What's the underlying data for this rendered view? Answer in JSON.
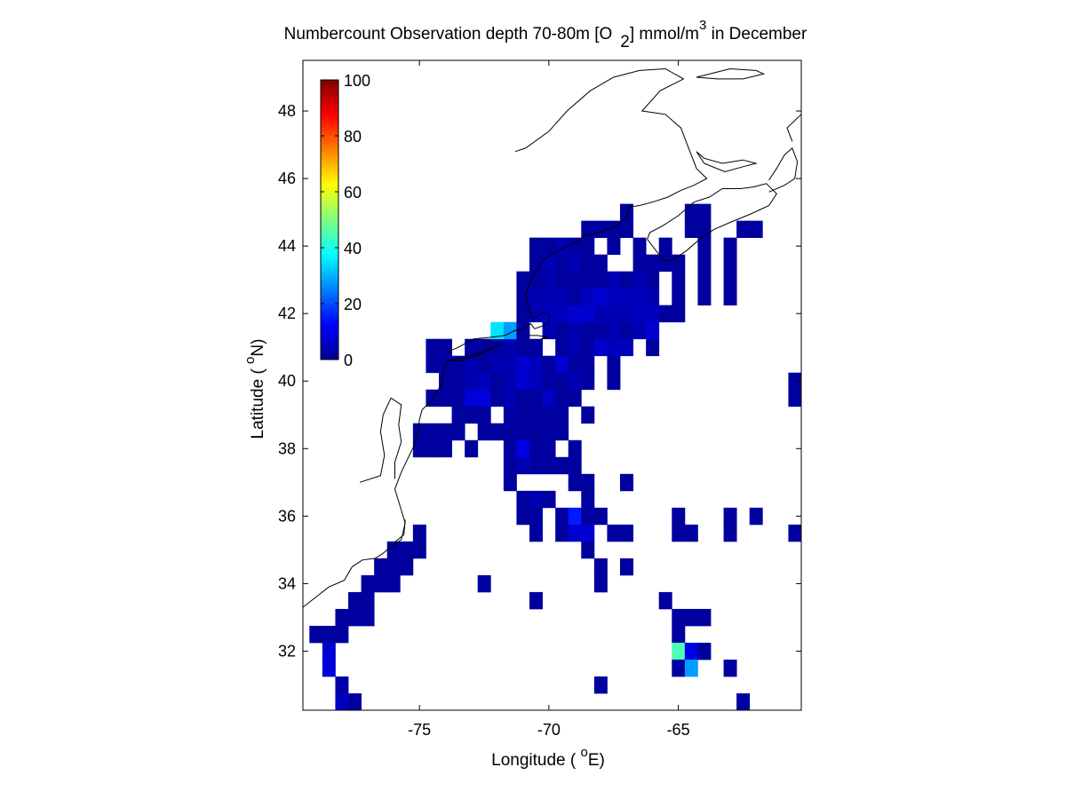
{
  "chart_data": {
    "type": "heatmap",
    "title": {
      "main": "Numbercount Observation depth 70-80m [O",
      "sub": "2",
      "unit": "] mmol/m",
      "unit_sup": "3",
      "tail": " in December"
    },
    "xlabel": {
      "pre": "Longitude ( ",
      "sup": "o",
      "post": "E)"
    },
    "ylabel": {
      "pre": "Latitude ( ",
      "sup": "o",
      "post": "N)"
    },
    "xlim": [
      -79.5,
      -60.25
    ],
    "ylim": [
      30.25,
      49.5
    ],
    "xticks": [
      -75,
      -70,
      -65
    ],
    "xtick_labels": [
      "-75",
      "-70",
      "-65"
    ],
    "yticks": [
      32,
      34,
      36,
      38,
      40,
      42,
      44,
      46,
      48
    ],
    "ytick_labels": [
      "32",
      "34",
      "36",
      "38",
      "40",
      "42",
      "44",
      "46",
      "48"
    ],
    "grid": false,
    "cell_size_deg": 0.5,
    "colormap": "jet",
    "colorbar": {
      "location": "inside-top-left",
      "range": [
        0,
        100
      ],
      "ticks": [
        0,
        20,
        40,
        60,
        80,
        100
      ],
      "tick_labels": [
        "0",
        "20",
        "40",
        "60",
        "80",
        "100"
      ]
    },
    "coastline_color": "#000000",
    "cells": [
      [
        -79.0,
        32.5,
        3
      ],
      [
        -78.5,
        32.5,
        3
      ],
      [
        -78.0,
        32.5,
        3
      ],
      [
        -78.5,
        32.0,
        8
      ],
      [
        -78.5,
        31.5,
        9
      ],
      [
        -78.0,
        31.0,
        4
      ],
      [
        -78.0,
        30.5,
        6
      ],
      [
        -77.5,
        30.5,
        3
      ],
      [
        -78.0,
        33.0,
        3
      ],
      [
        -77.5,
        33.0,
        3
      ],
      [
        -77.0,
        33.0,
        3
      ],
      [
        -77.5,
        33.5,
        3
      ],
      [
        -77.0,
        33.5,
        3
      ],
      [
        -77.0,
        34.0,
        3
      ],
      [
        -76.5,
        34.0,
        3
      ],
      [
        -76.0,
        34.0,
        3
      ],
      [
        -76.5,
        34.5,
        3
      ],
      [
        -76.0,
        34.5,
        3
      ],
      [
        -75.5,
        34.5,
        3
      ],
      [
        -76.0,
        35.0,
        3
      ],
      [
        -75.5,
        35.0,
        3
      ],
      [
        -75.0,
        35.0,
        3
      ],
      [
        -75.0,
        35.5,
        3
      ],
      [
        -75.0,
        38.5,
        3
      ],
      [
        -74.5,
        38.5,
        3
      ],
      [
        -75.0,
        38.0,
        3
      ],
      [
        -74.5,
        38.0,
        3
      ],
      [
        -74.0,
        38.0,
        3
      ],
      [
        -74.0,
        38.5,
        3
      ],
      [
        -73.5,
        38.5,
        3
      ],
      [
        -73.0,
        38.0,
        3
      ],
      [
        -72.5,
        38.5,
        3
      ],
      [
        -72.0,
        38.5,
        3
      ],
      [
        -71.5,
        38.5,
        3
      ],
      [
        -71.0,
        38.5,
        3
      ],
      [
        -70.5,
        38.5,
        3
      ],
      [
        -70.0,
        38.5,
        3
      ],
      [
        -69.5,
        38.5,
        3
      ],
      [
        -73.5,
        39.0,
        3
      ],
      [
        -73.0,
        39.0,
        3
      ],
      [
        -72.5,
        39.0,
        3
      ],
      [
        -71.5,
        39.0,
        3
      ],
      [
        -71.0,
        39.0,
        3
      ],
      [
        -70.5,
        39.0,
        3
      ],
      [
        -70.0,
        39.0,
        3
      ],
      [
        -69.5,
        39.0,
        3
      ],
      [
        -68.5,
        39.0,
        3
      ],
      [
        -74.5,
        39.5,
        3
      ],
      [
        -74.0,
        39.5,
        3
      ],
      [
        -73.5,
        39.5,
        3
      ],
      [
        -73.0,
        39.5,
        9
      ],
      [
        -72.5,
        39.5,
        9
      ],
      [
        -72.0,
        39.5,
        3
      ],
      [
        -71.5,
        39.5,
        5
      ],
      [
        -71.0,
        39.5,
        3
      ],
      [
        -70.5,
        39.5,
        3
      ],
      [
        -70.0,
        39.5,
        7
      ],
      [
        -69.5,
        39.5,
        3
      ],
      [
        -69.0,
        39.5,
        3
      ],
      [
        -74.0,
        40.0,
        3
      ],
      [
        -73.5,
        40.0,
        3
      ],
      [
        -73.0,
        40.0,
        5
      ],
      [
        -72.5,
        40.0,
        6
      ],
      [
        -72.0,
        40.0,
        3
      ],
      [
        -71.5,
        40.0,
        5
      ],
      [
        -71.0,
        40.0,
        8
      ],
      [
        -70.5,
        40.0,
        6
      ],
      [
        -70.0,
        40.0,
        3
      ],
      [
        -69.5,
        40.0,
        3
      ],
      [
        -69.0,
        40.0,
        5
      ],
      [
        -68.5,
        40.0,
        3
      ],
      [
        -67.5,
        40.0,
        3
      ],
      [
        -74.5,
        40.5,
        3
      ],
      [
        -74.0,
        40.5,
        3
      ],
      [
        -73.5,
        40.5,
        3
      ],
      [
        -73.0,
        40.5,
        5
      ],
      [
        -72.5,
        40.5,
        3
      ],
      [
        -72.0,
        40.5,
        5
      ],
      [
        -71.5,
        40.5,
        5
      ],
      [
        -71.0,
        40.5,
        8
      ],
      [
        -70.5,
        40.5,
        6
      ],
      [
        -70.0,
        40.5,
        3
      ],
      [
        -69.5,
        40.5,
        8
      ],
      [
        -69.0,
        40.5,
        3
      ],
      [
        -68.5,
        40.5,
        3
      ],
      [
        -67.5,
        40.5,
        3
      ],
      [
        -74.5,
        41.0,
        3
      ],
      [
        -74.0,
        41.0,
        3
      ],
      [
        -73.0,
        41.0,
        3
      ],
      [
        -72.5,
        41.0,
        3
      ],
      [
        -72.0,
        41.0,
        3
      ],
      [
        -71.5,
        41.0,
        5
      ],
      [
        -71.0,
        41.0,
        3
      ],
      [
        -70.5,
        41.0,
        3
      ],
      [
        -69.5,
        41.0,
        3
      ],
      [
        -69.0,
        41.0,
        5
      ],
      [
        -68.5,
        41.0,
        3
      ],
      [
        -68.0,
        41.0,
        8
      ],
      [
        -67.5,
        41.0,
        6
      ],
      [
        -67.0,
        41.0,
        6
      ],
      [
        -66.0,
        41.0,
        3
      ],
      [
        -72.0,
        41.5,
        35
      ],
      [
        -71.5,
        41.5,
        28
      ],
      [
        -71.0,
        41.5,
        3
      ],
      [
        -70.0,
        41.5,
        5
      ],
      [
        -69.5,
        41.5,
        3
      ],
      [
        -69.0,
        41.5,
        5
      ],
      [
        -68.5,
        41.5,
        3
      ],
      [
        -68.0,
        41.5,
        3
      ],
      [
        -67.5,
        41.5,
        5
      ],
      [
        -67.0,
        41.5,
        3
      ],
      [
        -66.5,
        41.5,
        5
      ],
      [
        -66.0,
        41.5,
        8
      ],
      [
        -71.0,
        42.0,
        3
      ],
      [
        -70.5,
        42.0,
        5
      ],
      [
        -70.0,
        42.0,
        6
      ],
      [
        -69.5,
        42.0,
        6
      ],
      [
        -69.0,
        42.0,
        8
      ],
      [
        -68.5,
        42.0,
        8
      ],
      [
        -68.0,
        42.0,
        5
      ],
      [
        -67.5,
        42.0,
        5
      ],
      [
        -67.0,
        42.0,
        5
      ],
      [
        -66.5,
        42.0,
        6
      ],
      [
        -66.0,
        42.0,
        6
      ],
      [
        -65.5,
        42.0,
        3
      ],
      [
        -65.0,
        42.0,
        3
      ],
      [
        -71.0,
        42.5,
        3
      ],
      [
        -70.5,
        42.5,
        5
      ],
      [
        -70.0,
        42.5,
        5
      ],
      [
        -69.5,
        42.5,
        5
      ],
      [
        -69.0,
        42.5,
        3
      ],
      [
        -68.5,
        42.5,
        6
      ],
      [
        -68.0,
        42.5,
        8
      ],
      [
        -67.5,
        42.5,
        6
      ],
      [
        -67.0,
        42.5,
        6
      ],
      [
        -66.5,
        42.5,
        6
      ],
      [
        -66.0,
        42.5,
        5
      ],
      [
        -65.0,
        42.5,
        3
      ],
      [
        -64.0,
        42.5,
        3
      ],
      [
        -63.0,
        42.5,
        3
      ],
      [
        -71.0,
        43.0,
        3
      ],
      [
        -70.5,
        43.0,
        3
      ],
      [
        -70.0,
        43.0,
        5
      ],
      [
        -69.5,
        43.0,
        3
      ],
      [
        -69.0,
        43.0,
        3
      ],
      [
        -68.5,
        43.0,
        3
      ],
      [
        -68.0,
        43.0,
        3
      ],
      [
        -67.5,
        43.0,
        5
      ],
      [
        -67.0,
        43.0,
        3
      ],
      [
        -66.5,
        43.0,
        5
      ],
      [
        -66.0,
        43.0,
        3
      ],
      [
        -65.0,
        43.0,
        3
      ],
      [
        -64.0,
        43.0,
        3
      ],
      [
        -63.0,
        43.0,
        3
      ],
      [
        -70.5,
        43.5,
        3
      ],
      [
        -70.0,
        43.5,
        5
      ],
      [
        -69.5,
        43.5,
        3
      ],
      [
        -69.0,
        43.5,
        5
      ],
      [
        -68.5,
        43.5,
        3
      ],
      [
        -68.0,
        43.5,
        3
      ],
      [
        -66.5,
        43.5,
        3
      ],
      [
        -66.0,
        43.5,
        3
      ],
      [
        -65.5,
        43.5,
        3
      ],
      [
        -65.0,
        43.5,
        3
      ],
      [
        -64.0,
        43.5,
        3
      ],
      [
        -63.0,
        43.5,
        3
      ],
      [
        -70.5,
        44.0,
        3
      ],
      [
        -70.0,
        44.0,
        3
      ],
      [
        -69.5,
        44.0,
        5
      ],
      [
        -69.0,
        44.0,
        3
      ],
      [
        -68.5,
        44.0,
        3
      ],
      [
        -67.5,
        44.0,
        3
      ],
      [
        -66.5,
        44.0,
        3
      ],
      [
        -65.5,
        44.0,
        3
      ],
      [
        -64.0,
        44.0,
        3
      ],
      [
        -63.0,
        44.0,
        3
      ],
      [
        -68.5,
        44.5,
        3
      ],
      [
        -68.0,
        44.5,
        3
      ],
      [
        -67.5,
        44.5,
        3
      ],
      [
        -67.0,
        44.5,
        3
      ],
      [
        -64.5,
        44.5,
        3
      ],
      [
        -64.0,
        44.5,
        3
      ],
      [
        -62.5,
        44.5,
        3
      ],
      [
        -62.0,
        44.5,
        3
      ],
      [
        -67.0,
        45.0,
        3
      ],
      [
        -64.5,
        45.0,
        3
      ],
      [
        -64.0,
        45.0,
        3
      ],
      [
        -70.5,
        37.5,
        3
      ],
      [
        -70.0,
        37.5,
        3
      ],
      [
        -69.5,
        37.5,
        3
      ],
      [
        -69.0,
        37.5,
        3
      ],
      [
        -71.0,
        37.5,
        5
      ],
      [
        -71.5,
        37.5,
        3
      ],
      [
        -71.5,
        38.0,
        3
      ],
      [
        -71.0,
        38.0,
        10
      ],
      [
        -70.5,
        38.0,
        3
      ],
      [
        -70.0,
        38.0,
        3
      ],
      [
        -69.0,
        38.0,
        3
      ],
      [
        -71.5,
        37.0,
        3
      ],
      [
        -69.0,
        37.0,
        3
      ],
      [
        -68.5,
        37.0,
        3
      ],
      [
        -67.0,
        37.0,
        3
      ],
      [
        -71.0,
        36.5,
        3
      ],
      [
        -70.5,
        36.5,
        5
      ],
      [
        -70.0,
        36.5,
        3
      ],
      [
        -68.5,
        36.5,
        3
      ],
      [
        -71.0,
        36.0,
        3
      ],
      [
        -70.5,
        36.0,
        3
      ],
      [
        -69.5,
        36.0,
        3
      ],
      [
        -69.0,
        36.0,
        15
      ],
      [
        -68.5,
        36.0,
        3
      ],
      [
        -68.0,
        36.0,
        3
      ],
      [
        -65.0,
        36.0,
        3
      ],
      [
        -63.0,
        36.0,
        3
      ],
      [
        -62.0,
        36.0,
        3
      ],
      [
        -70.5,
        35.5,
        3
      ],
      [
        -69.5,
        35.5,
        3
      ],
      [
        -69.0,
        35.5,
        8
      ],
      [
        -68.5,
        35.5,
        8
      ],
      [
        -67.5,
        35.5,
        3
      ],
      [
        -67.0,
        35.5,
        3
      ],
      [
        -65.0,
        35.5,
        3
      ],
      [
        -64.5,
        35.5,
        3
      ],
      [
        -63.0,
        35.5,
        3
      ],
      [
        -60.5,
        35.5,
        3
      ],
      [
        -68.5,
        35.0,
        3
      ],
      [
        -68.0,
        34.5,
        3
      ],
      [
        -67.0,
        34.5,
        3
      ],
      [
        -68.0,
        34.0,
        3
      ],
      [
        -72.5,
        34.0,
        3
      ],
      [
        -70.5,
        33.5,
        3
      ],
      [
        -65.5,
        33.5,
        3
      ],
      [
        -65.0,
        33.0,
        3
      ],
      [
        -64.5,
        33.0,
        3
      ],
      [
        -64.0,
        33.0,
        3
      ],
      [
        -65.0,
        32.5,
        3
      ],
      [
        -65.0,
        32.0,
        45
      ],
      [
        -64.5,
        32.0,
        10
      ],
      [
        -64.0,
        32.0,
        3
      ],
      [
        -65.0,
        31.5,
        3
      ],
      [
        -64.5,
        31.5,
        28
      ],
      [
        -63.0,
        31.5,
        3
      ],
      [
        -68.0,
        31.0,
        3
      ],
      [
        -62.5,
        30.5,
        3
      ],
      [
        -60.5,
        40.0,
        3
      ],
      [
        -60.5,
        39.5,
        3
      ]
    ]
  }
}
